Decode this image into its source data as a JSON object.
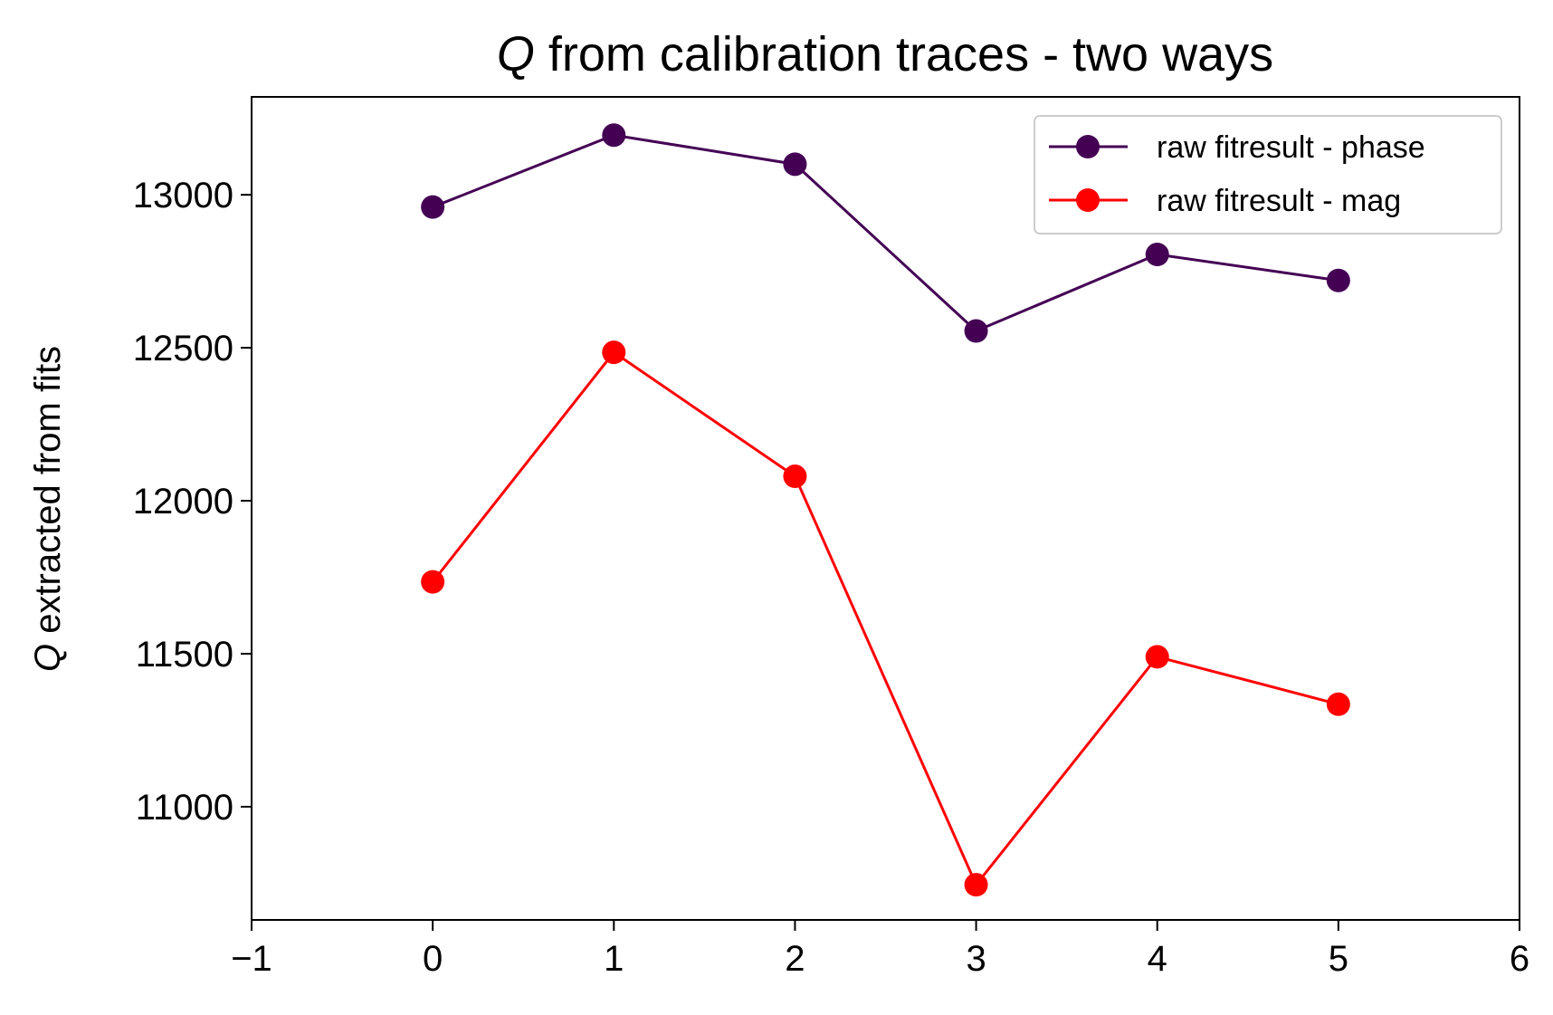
{
  "chart_data": {
    "type": "line",
    "title_var": "Q",
    "title": " from calibration traces - two ways",
    "ylabel_var": "Q",
    "ylabel": " extracted from fits",
    "xlabel": "",
    "xlim": [
      -1,
      6
    ],
    "ylim": [
      10630,
      13320
    ],
    "x_ticks": [
      -1,
      0,
      1,
      2,
      3,
      4,
      5,
      6
    ],
    "x_tick_labels": [
      "−1",
      "0",
      "1",
      "2",
      "3",
      "4",
      "5",
      "6"
    ],
    "y_ticks": [
      11000,
      11500,
      12000,
      12500,
      13000
    ],
    "y_tick_labels": [
      "11000",
      "11500",
      "12000",
      "12500",
      "13000"
    ],
    "grid": false,
    "legend_position": "top-right",
    "x": [
      0,
      1,
      2,
      3,
      4,
      5
    ],
    "series": [
      {
        "name": "raw fitresult - phase",
        "color": "#440154",
        "values": [
          12960,
          13195,
          13100,
          12555,
          12805,
          12720
        ]
      },
      {
        "name": "raw fitresult - mag",
        "color": "#ff0000",
        "values": [
          11735,
          12485,
          12080,
          10745,
          11490,
          11335
        ]
      }
    ]
  }
}
